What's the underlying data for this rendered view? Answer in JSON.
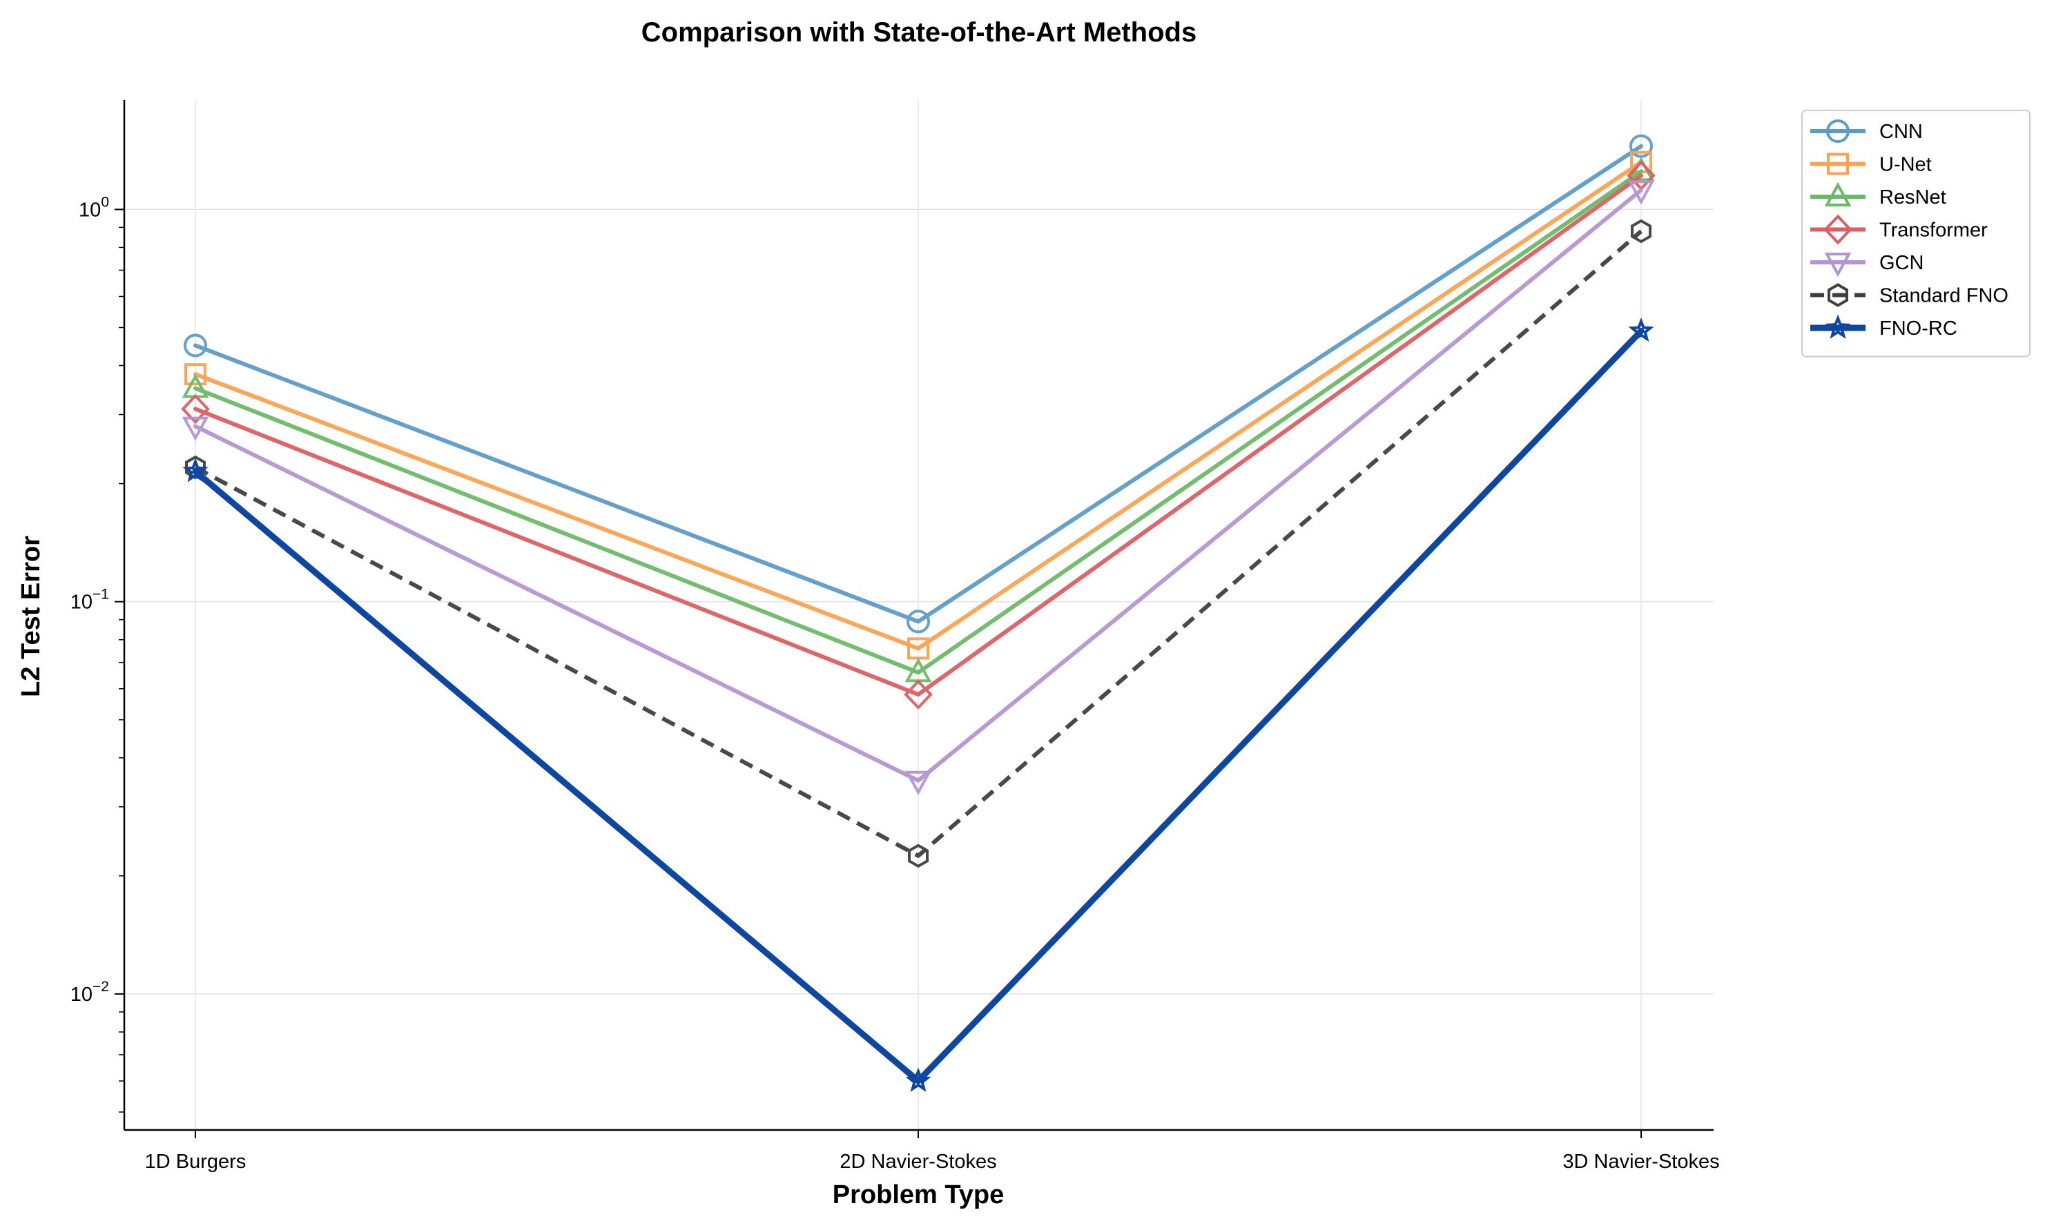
{
  "chart_data": {
    "type": "line",
    "title": "Comparison with State-of-the-Art Methods",
    "xlabel": "Problem Type",
    "ylabel": "L2 Test Error",
    "categories": [
      "1D Burgers",
      "2D Navier-Stokes",
      "3D Navier-Stokes"
    ],
    "y_scale": "log",
    "ylim": [
      0.0045,
      1.9
    ],
    "y_major_ticks": [
      {
        "value": 0.01,
        "base": "10",
        "exp": "−2"
      },
      {
        "value": 0.1,
        "base": "10",
        "exp": "−1"
      },
      {
        "value": 1,
        "base": "10",
        "exp": "0"
      }
    ],
    "grid": true,
    "legend_position": "outside-top-right",
    "series": [
      {
        "name": "CNN",
        "values": [
          0.45,
          0.089,
          1.45
        ],
        "color": "#5b9bc8",
        "marker": "circle",
        "dash": "solid"
      },
      {
        "name": "U-Net",
        "values": [
          0.38,
          0.076,
          1.32
        ],
        "color": "#fba24f",
        "marker": "square",
        "dash": "solid"
      },
      {
        "name": "ResNet",
        "values": [
          0.35,
          0.066,
          1.25
        ],
        "color": "#6ab966",
        "marker": "triangle-up",
        "dash": "solid"
      },
      {
        "name": "Transformer",
        "values": [
          0.31,
          0.058,
          1.22
        ],
        "color": "#dd5e60",
        "marker": "diamond",
        "dash": "solid"
      },
      {
        "name": "GCN",
        "values": [
          0.28,
          0.035,
          1.12
        ],
        "color": "#b495d2",
        "marker": "triangle-down",
        "dash": "solid"
      },
      {
        "name": "Standard FNO",
        "values": [
          0.22,
          0.0225,
          0.88
        ],
        "color": "#3f3f3f",
        "marker": "hexagon",
        "dash": "dashed"
      },
      {
        "name": "FNO-RC",
        "values": [
          0.215,
          0.006,
          0.49
        ],
        "color": "#0d47a1",
        "marker": "star",
        "dash": "solid"
      }
    ]
  }
}
